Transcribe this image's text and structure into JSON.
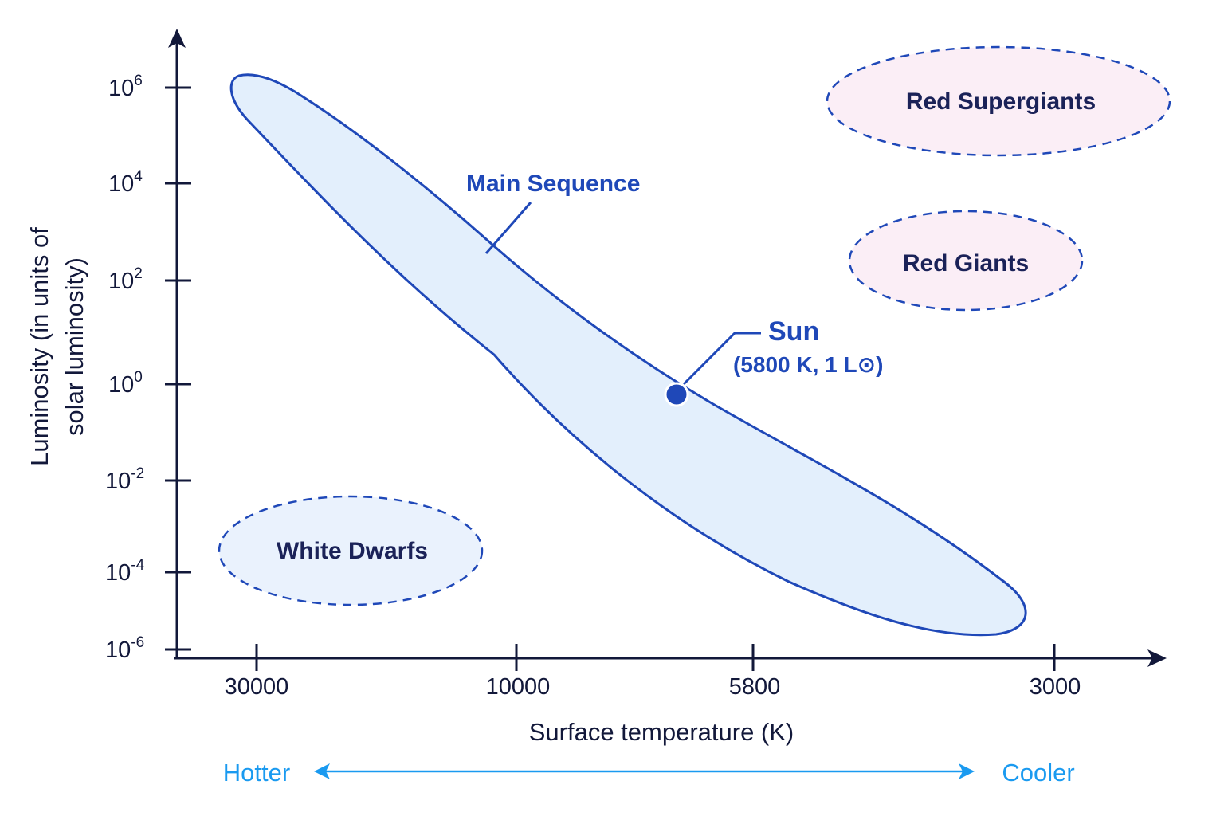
{
  "diagram": {
    "y_axis_title_line1": "Luminosity (in units of",
    "y_axis_title_line2": "solar luminosity)",
    "x_axis_title": "Surface temperature (K)",
    "y_ticks": [
      {
        "base": "10",
        "exp": "6"
      },
      {
        "base": "10",
        "exp": "4"
      },
      {
        "base": "10",
        "exp": "2"
      },
      {
        "base": "10",
        "exp": "0"
      },
      {
        "base": "10",
        "exp": "-2"
      },
      {
        "base": "10",
        "exp": "-4"
      },
      {
        "base": "10",
        "exp": "-6"
      }
    ],
    "x_ticks": [
      "30000",
      "10000",
      "5800",
      "3000"
    ],
    "regions": {
      "main_sequence": "Main Sequence",
      "red_supergiants": "Red Supergiants",
      "red_giants": "Red Giants",
      "white_dwarfs": "White Dwarfs"
    },
    "sun": {
      "label": "Sun",
      "detail": "(5800 K, 1 L⊙)"
    },
    "direction": {
      "hotter": "Hotter",
      "cooler": "Cooler"
    },
    "colors": {
      "axis": "#12183a",
      "band_stroke": "#1f48b8",
      "band_fill": "#e3effc",
      "giant_fill": "#fbeef6",
      "dwarf_fill": "#eaf2fd",
      "direction": "#1a9af0"
    }
  }
}
